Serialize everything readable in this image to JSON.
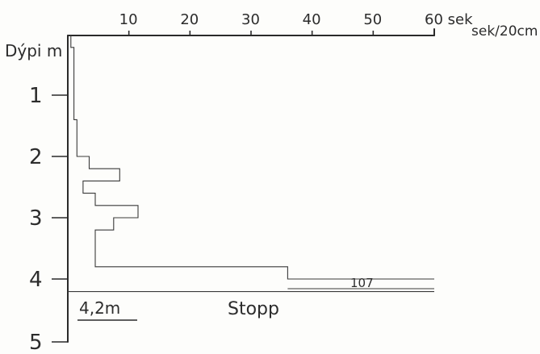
{
  "chart_data": {
    "type": "line",
    "title": "",
    "xlabel": "sek/20cm",
    "ylabel": "Dýpi m",
    "x_axis_position": "top",
    "xlim": [
      0,
      60
    ],
    "ylim": [
      0,
      5
    ],
    "x_ticks": [
      {
        "value": 10,
        "label": "10"
      },
      {
        "value": 20,
        "label": "20"
      },
      {
        "value": 30,
        "label": "30"
      },
      {
        "value": 40,
        "label": "40"
      },
      {
        "value": 50,
        "label": "50"
      },
      {
        "value": 60,
        "label": "60 sek"
      }
    ],
    "y_ticks": [
      {
        "value": 1,
        "label": "1"
      },
      {
        "value": 2,
        "label": "2"
      },
      {
        "value": 3,
        "label": "3"
      },
      {
        "value": 4,
        "label": "4"
      },
      {
        "value": 5,
        "label": "5"
      }
    ],
    "grid": false,
    "series": [
      {
        "points": [
          [
            0.5,
            0.0
          ],
          [
            0.5,
            0.2
          ],
          [
            1,
            0.2
          ],
          [
            1,
            1.4
          ],
          [
            1.5,
            1.4
          ],
          [
            1.5,
            2.0
          ],
          [
            3.5,
            2.0
          ],
          [
            3.5,
            2.2
          ],
          [
            8.5,
            2.2
          ],
          [
            8.5,
            2.4
          ],
          [
            2.5,
            2.4
          ],
          [
            2.5,
            2.6
          ],
          [
            4.5,
            2.6
          ],
          [
            4.5,
            2.8
          ],
          [
            11.5,
            2.8
          ],
          [
            11.5,
            3.0
          ],
          [
            7.5,
            3.0
          ],
          [
            7.5,
            3.2
          ],
          [
            4.5,
            3.2
          ],
          [
            4.5,
            3.8
          ],
          [
            36,
            3.8
          ],
          [
            36,
            4.0
          ],
          [
            60,
            4.0
          ]
        ]
      }
    ],
    "stop_depth": 4.2,
    "annotations": {
      "overflow_value": "107",
      "stop_label": "Stopp",
      "stop_depth_label": "4,2m"
    }
  }
}
